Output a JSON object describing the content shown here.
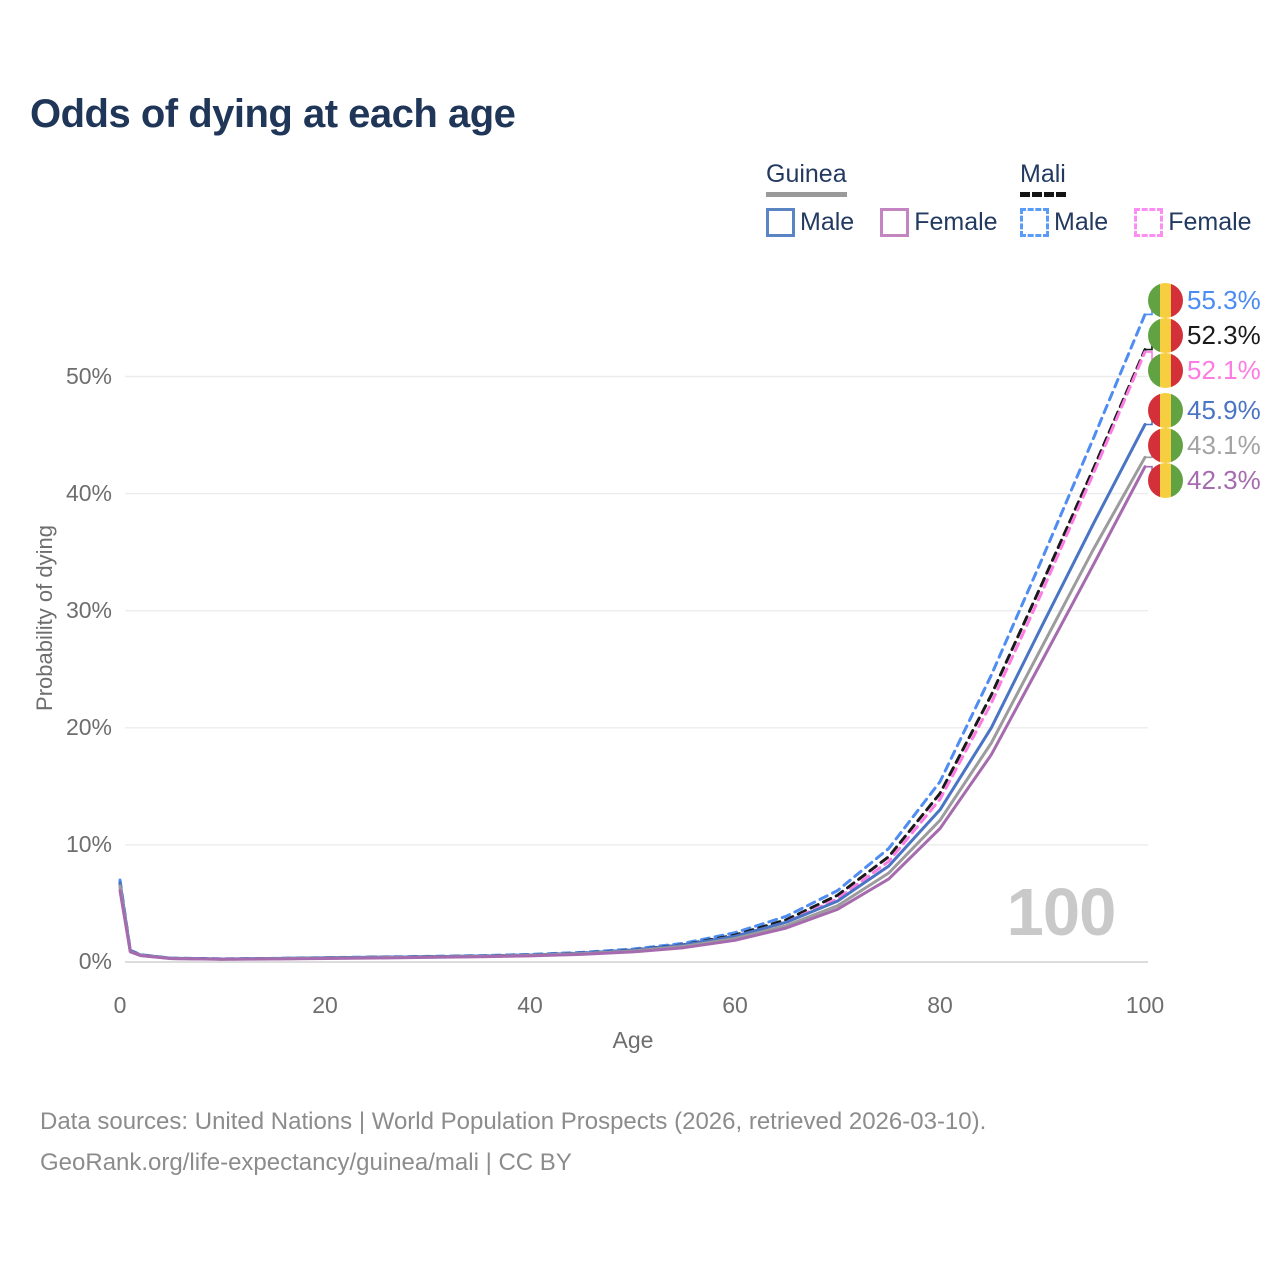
{
  "title": "Odds of dying at each age",
  "legend": {
    "groups": [
      {
        "country": "Guinea",
        "line_style": "solid",
        "underline_color": "#9a9a9a",
        "items": [
          {
            "label": "Male",
            "color": "#5b84c4"
          },
          {
            "label": "Female",
            "color": "#c285c2"
          }
        ]
      },
      {
        "country": "Mali",
        "line_style": "dashed",
        "underline_color": "#141414",
        "items": [
          {
            "label": "Male",
            "color": "#5b9bf8"
          },
          {
            "label": "Female",
            "color": "#fc8df3"
          }
        ]
      }
    ]
  },
  "axes": {
    "ylabel": "Probability of dying",
    "xlabel": "Age"
  },
  "watermark": "100",
  "flags": {
    "guinea": [
      "#d3303a",
      "#f6ce40",
      "#61a343"
    ],
    "mali": [
      "#61a343",
      "#f6ce40",
      "#d3303a"
    ]
  },
  "chart_data": {
    "type": "line",
    "title": "Odds of dying at each age",
    "xlabel": "Age",
    "ylabel": "Probability of dying",
    "xlim": [
      0,
      100
    ],
    "ylim_percent": [
      0,
      58
    ],
    "xticks": [
      0,
      20,
      40,
      60,
      80,
      100
    ],
    "ytick_values": [
      0,
      10,
      20,
      30,
      40,
      50
    ],
    "ytick_labels": [
      "0%",
      "10%",
      "20%",
      "30%",
      "40%",
      "50%"
    ],
    "grid": true,
    "legend_position": "top-right",
    "watermark_age": "100",
    "x_ages": [
      0,
      1,
      2,
      5,
      10,
      15,
      20,
      25,
      30,
      35,
      40,
      45,
      50,
      55,
      60,
      65,
      70,
      75,
      80,
      85,
      90,
      95,
      100
    ],
    "series": [
      {
        "name": "Mali Male",
        "country": "mali",
        "sex": "male",
        "color": "#4f8df2",
        "label_color": "#4b8bf4",
        "dash": true,
        "end_label": "55.3%",
        "values": [
          7.0,
          1.0,
          0.62,
          0.33,
          0.27,
          0.31,
          0.38,
          0.43,
          0.48,
          0.54,
          0.65,
          0.82,
          1.1,
          1.6,
          2.5,
          3.9,
          6.1,
          9.7,
          15.4,
          24.5,
          34.5,
          44.8,
          55.3
        ]
      },
      {
        "name": "Mali Both sexes",
        "country": "mali",
        "sex": "both",
        "color": "#1a1a1a",
        "label_color": "#1a1a1a",
        "dash": true,
        "end_label": "52.3%",
        "values": [
          6.7,
          0.95,
          0.6,
          0.31,
          0.25,
          0.29,
          0.35,
          0.4,
          0.45,
          0.5,
          0.6,
          0.76,
          1.02,
          1.48,
          2.3,
          3.6,
          5.7,
          9.0,
          14.4,
          22.8,
          32.4,
          42.2,
          52.3
        ]
      },
      {
        "name": "Mali Female",
        "country": "mali",
        "sex": "female",
        "color": "#fc7ce4",
        "label_color": "#fc7ce4",
        "dash": true,
        "end_label": "52.1%",
        "values": [
          6.4,
          0.9,
          0.57,
          0.3,
          0.24,
          0.27,
          0.32,
          0.37,
          0.42,
          0.47,
          0.56,
          0.7,
          0.95,
          1.38,
          2.15,
          3.4,
          5.4,
          8.6,
          13.9,
          22.1,
          31.7,
          41.8,
          52.1
        ]
      },
      {
        "name": "Guinea Male",
        "country": "guinea",
        "sex": "male",
        "color": "#4a74c4",
        "label_color": "#4a74c4",
        "dash": false,
        "end_label": "45.9%",
        "values": [
          6.8,
          0.95,
          0.6,
          0.32,
          0.26,
          0.3,
          0.36,
          0.4,
          0.45,
          0.5,
          0.6,
          0.75,
          1.0,
          1.45,
          2.2,
          3.4,
          5.2,
          8.2,
          13.0,
          20.0,
          28.8,
          37.5,
          45.9
        ]
      },
      {
        "name": "Guinea Both sexes",
        "country": "guinea",
        "sex": "both",
        "color": "#9c9c9c",
        "label_color": "#a3a3a3",
        "dash": false,
        "end_label": "43.1%",
        "values": [
          6.5,
          0.9,
          0.57,
          0.3,
          0.24,
          0.28,
          0.33,
          0.37,
          0.42,
          0.47,
          0.56,
          0.7,
          0.93,
          1.33,
          2.0,
          3.1,
          4.8,
          7.6,
          12.1,
          18.7,
          27.0,
          35.3,
          43.1
        ]
      },
      {
        "name": "Guinea Female",
        "country": "guinea",
        "sex": "female",
        "color": "#a66bae",
        "label_color": "#a66bae",
        "dash": false,
        "end_label": "42.3%",
        "values": [
          6.1,
          0.87,
          0.55,
          0.29,
          0.23,
          0.26,
          0.3,
          0.34,
          0.39,
          0.44,
          0.52,
          0.65,
          0.86,
          1.22,
          1.85,
          2.9,
          4.5,
          7.1,
          11.4,
          17.7,
          25.8,
          34.0,
          42.3
        ]
      }
    ]
  },
  "footer": {
    "line1": "Data sources: United Nations | World Population Prospects (2026, retrieved 2026-03-10).",
    "line2": "GeoRank.org/life-expectancy/guinea/mali | CC BY"
  }
}
